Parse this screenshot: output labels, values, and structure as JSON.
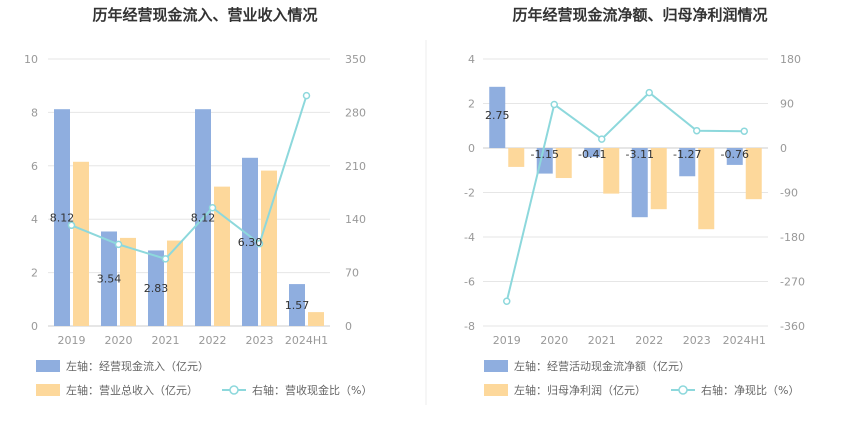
{
  "colors": {
    "bar_primary": "#8faedf",
    "bar_secondary": "#fdd89b",
    "line": "#8dd8dc",
    "grid": "#e6e6e6",
    "axis": "#cccccc",
    "divider": "#eeeeee"
  },
  "chart_data": [
    {
      "type": "bar",
      "title": "历年经营现金流入、营业收入情况",
      "categories": [
        "2019",
        "2020",
        "2021",
        "2022",
        "2023",
        "2024H1"
      ],
      "left_axis": {
        "ticks": [
          "0",
          "2",
          "4",
          "6",
          "8",
          "10"
        ],
        "ylim": [
          0,
          10
        ]
      },
      "right_axis": {
        "ticks": [
          "0",
          "70",
          "140",
          "210",
          "280",
          "350"
        ],
        "ylim": [
          0,
          350
        ]
      },
      "series": [
        {
          "name": "左轴：经营现金流入（亿元）",
          "kind": "bar",
          "axis": "left",
          "color": "#8faedf",
          "values": [
            8.12,
            3.54,
            2.83,
            8.12,
            6.3,
            1.57
          ],
          "labels": [
            "8.12",
            "3.54",
            "2.83",
            "8.12",
            "6.30",
            "1.57"
          ]
        },
        {
          "name": "左轴：营业总收入（亿元）",
          "kind": "bar",
          "axis": "left",
          "color": "#fdd89b",
          "values": [
            6.15,
            3.3,
            3.2,
            5.22,
            5.82,
            0.52
          ]
        },
        {
          "name": "右轴：营收现金比（%）",
          "kind": "line",
          "axis": "right",
          "color": "#8dd8dc",
          "values": [
            132,
            107,
            88,
            155,
            108,
            302
          ]
        }
      ]
    },
    {
      "type": "bar",
      "title": "历年经营现金流净额、归母净利润情况",
      "categories": [
        "2019",
        "2020",
        "2021",
        "2022",
        "2023",
        "2024H1"
      ],
      "left_axis": {
        "ticks": [
          "-8",
          "-6",
          "-4",
          "-2",
          "0",
          "2",
          "4"
        ],
        "ylim": [
          -8,
          4
        ]
      },
      "right_axis": {
        "ticks": [
          "-360",
          "-270",
          "-180",
          "-90",
          "0",
          "90",
          "180"
        ],
        "ylim": [
          -360,
          180
        ]
      },
      "series": [
        {
          "name": "左轴：经营活动现金流净额（亿元）",
          "kind": "bar",
          "axis": "left",
          "color": "#8faedf",
          "values": [
            2.75,
            -1.15,
            -0.41,
            -3.11,
            -1.27,
            -0.76
          ],
          "labels": [
            "2.75",
            "-1.15",
            "-0.41",
            "-3.11",
            "-1.27",
            "-0.76"
          ]
        },
        {
          "name": "左轴：归母净利润（亿元）",
          "kind": "bar",
          "axis": "left",
          "color": "#fdd89b",
          "values": [
            -0.85,
            -1.35,
            -2.05,
            -2.75,
            -3.65,
            -2.3
          ]
        },
        {
          "name": "右轴：净现比（%）",
          "kind": "line",
          "axis": "right",
          "color": "#8dd8dc",
          "values": [
            -310,
            88,
            18,
            112,
            35,
            34
          ]
        }
      ]
    }
  ]
}
